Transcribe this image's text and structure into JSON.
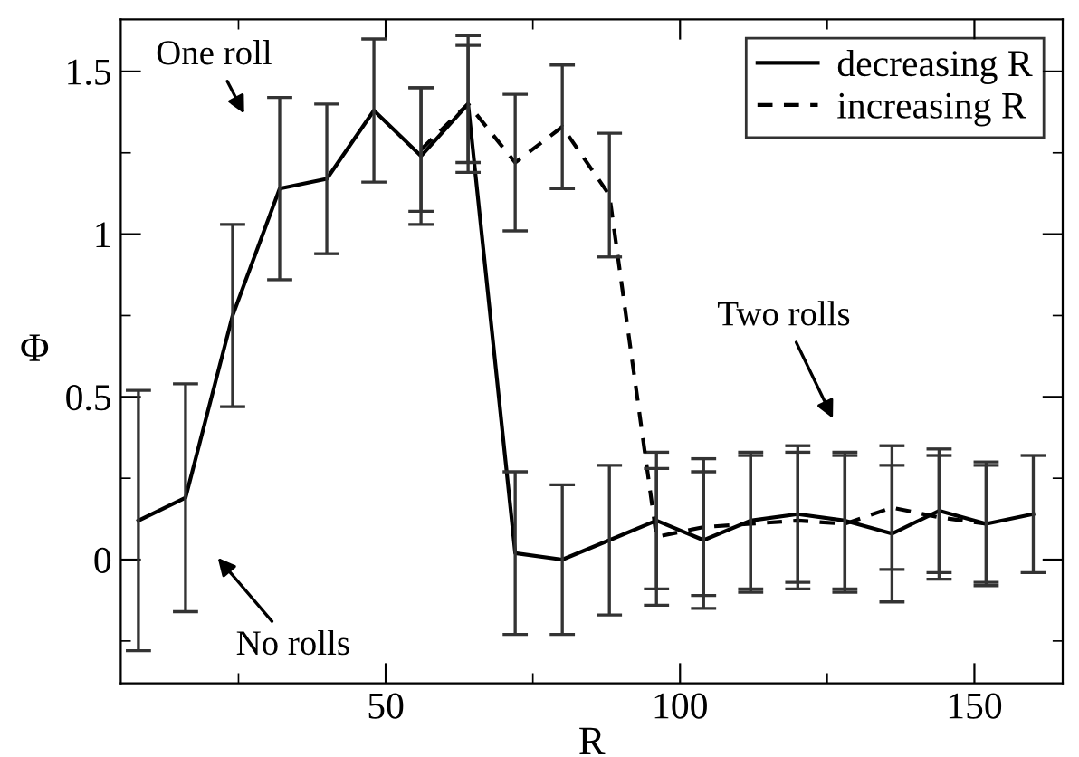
{
  "chart_data": {
    "type": "line",
    "xlabel": "R",
    "ylabel": "Φ",
    "xlim": [
      5,
      165
    ],
    "ylim": [
      -0.38,
      1.66
    ],
    "xticks": [
      50,
      100,
      150
    ],
    "yticks": [
      0,
      0.5,
      1,
      1.5
    ],
    "legend": "top right",
    "grid": false,
    "marker": "none",
    "series": [
      {
        "name": "decreasing R",
        "color": "#000000",
        "line_style": "solid",
        "x": [
          8,
          16,
          24,
          32,
          40,
          48,
          56,
          64,
          72,
          80,
          88,
          96,
          104,
          112,
          120,
          128,
          136,
          144,
          152,
          160
        ],
        "values": [
          0.12,
          0.19,
          0.75,
          1.14,
          1.17,
          1.38,
          1.24,
          1.4,
          0.02,
          0.0,
          0.06,
          0.12,
          0.06,
          0.12,
          0.14,
          0.12,
          0.08,
          0.15,
          0.11,
          0.14
        ],
        "errors": [
          0.4,
          0.35,
          0.28,
          0.28,
          0.23,
          0.22,
          0.21,
          0.21,
          0.25,
          0.23,
          0.23,
          0.21,
          0.21,
          0.21,
          0.21,
          0.21,
          0.21,
          0.19,
          0.19,
          0.18
        ]
      },
      {
        "name": "increasing R",
        "color": "#000000",
        "line_style": "dashed",
        "x": [
          56,
          64,
          72,
          80,
          88,
          96,
          104,
          112,
          120,
          128,
          136,
          144,
          152
        ],
        "values": [
          1.26,
          1.4,
          1.22,
          1.33,
          1.12,
          0.07,
          0.1,
          0.11,
          0.12,
          0.11,
          0.16,
          0.13,
          0.11
        ],
        "errors": [
          0.19,
          0.18,
          0.21,
          0.19,
          0.19,
          0.21,
          0.21,
          0.21,
          0.21,
          0.21,
          0.19,
          0.19,
          0.18
        ]
      }
    ],
    "annotations": [
      "One roll",
      "No rolls",
      "Two rolls"
    ]
  }
}
